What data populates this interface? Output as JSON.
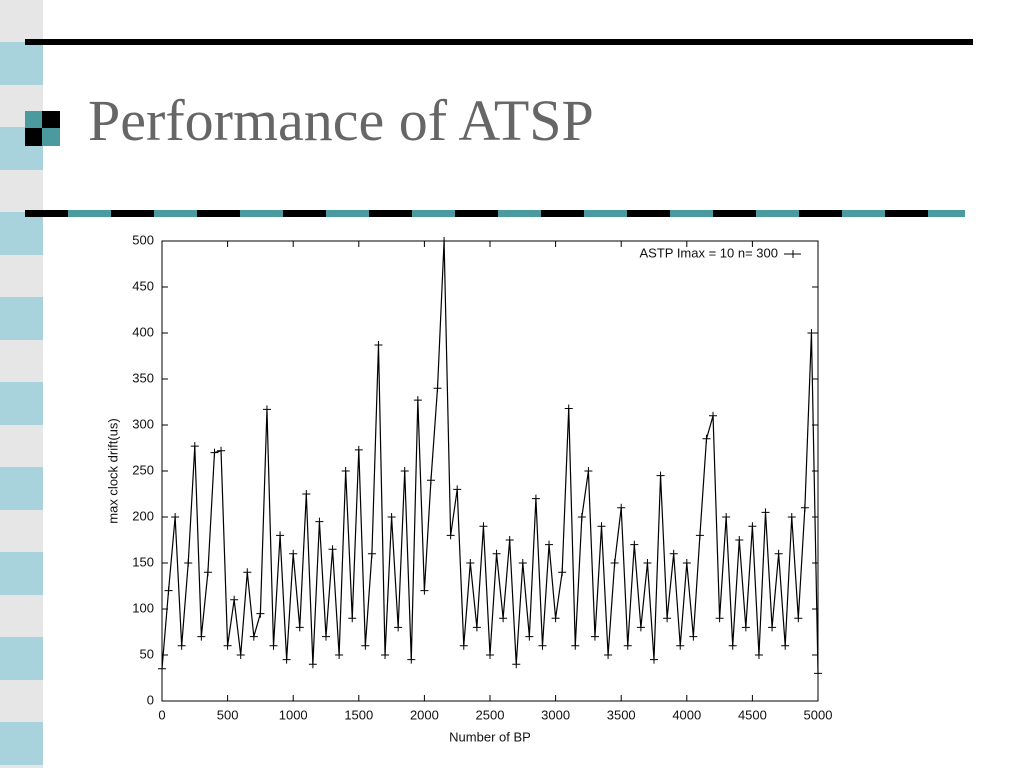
{
  "slide": {
    "title": "Performance of ATSP"
  },
  "chart_data": {
    "type": "line",
    "xlabel": "Number of BP",
    "ylabel": "max clock drift(us)",
    "x": [
      0,
      50,
      100,
      150,
      200,
      250,
      300,
      350,
      400,
      450,
      500,
      550,
      600,
      650,
      700,
      750,
      800,
      850,
      900,
      950,
      1000,
      1050,
      1100,
      1150,
      1200,
      1250,
      1300,
      1350,
      1400,
      1450,
      1500,
      1550,
      1600,
      1650,
      1700,
      1750,
      1800,
      1850,
      1900,
      1950,
      2000,
      2050,
      2100,
      2150,
      2200,
      2250,
      2300,
      2350,
      2400,
      2450,
      2500,
      2550,
      2600,
      2650,
      2700,
      2750,
      2800,
      2850,
      2900,
      2950,
      3000,
      3050,
      3100,
      3150,
      3200,
      3250,
      3300,
      3350,
      3400,
      3450,
      3500,
      3550,
      3600,
      3650,
      3700,
      3750,
      3800,
      3850,
      3900,
      3950,
      4000,
      4050,
      4100,
      4150,
      4200,
      4250,
      4300,
      4350,
      4400,
      4450,
      4500,
      4550,
      4600,
      4650,
      4700,
      4750,
      4800,
      4850,
      4900,
      4950,
      5000
    ],
    "series": [
      {
        "name": "ASTP Imax = 10 n= 300",
        "color": "#000000",
        "values": [
          35,
          120,
          200,
          60,
          150,
          277,
          70,
          140,
          270,
          272,
          60,
          110,
          50,
          140,
          70,
          95,
          317,
          60,
          180,
          45,
          160,
          80,
          225,
          40,
          195,
          70,
          165,
          50,
          250,
          90,
          273,
          60,
          160,
          387,
          50,
          200,
          80,
          250,
          45,
          327,
          120,
          240,
          340,
          500,
          180,
          230,
          60,
          150,
          80,
          190,
          50,
          160,
          90,
          175,
          40,
          150,
          70,
          220,
          60,
          170,
          90,
          140,
          318,
          60,
          200,
          250,
          70,
          190,
          50,
          150,
          210,
          60,
          170,
          80,
          150,
          45,
          245,
          90,
          160,
          60,
          150,
          70,
          180,
          285,
          310,
          90,
          200,
          60,
          175,
          80,
          190,
          50,
          205,
          80,
          160,
          60,
          200,
          90,
          210,
          400,
          30
        ]
      }
    ],
    "xlim": [
      0,
      5000
    ],
    "ylim": [
      0,
      500
    ],
    "xticks": [
      0,
      500,
      1000,
      1500,
      2000,
      2500,
      3000,
      3500,
      4000,
      4500,
      5000
    ],
    "yticks": [
      0,
      50,
      100,
      150,
      200,
      250,
      300,
      350,
      400,
      450,
      500
    ],
    "legend": "upper right"
  }
}
